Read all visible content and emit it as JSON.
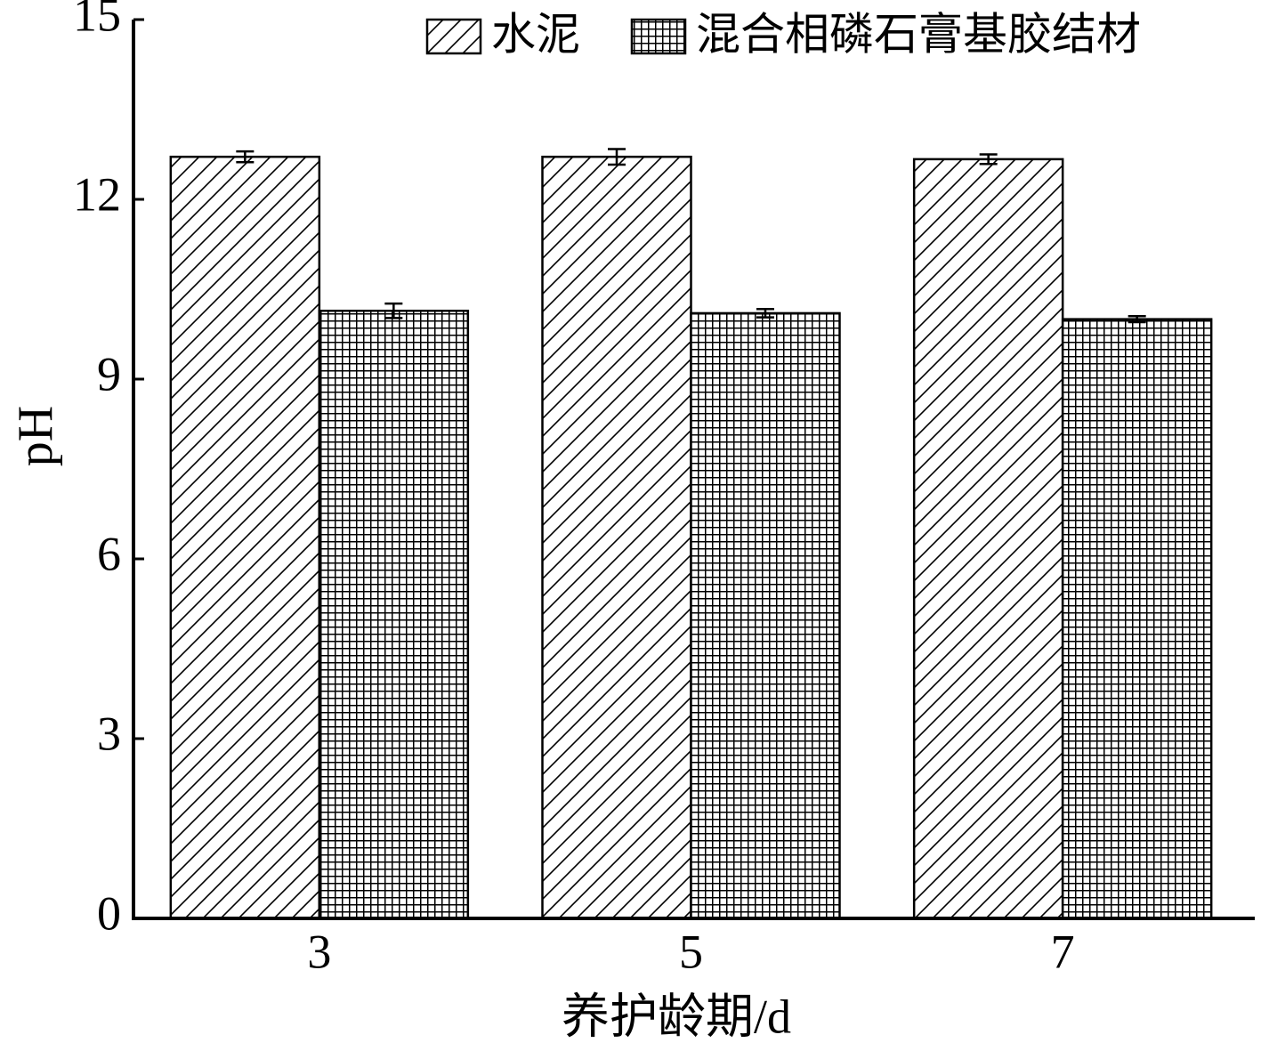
{
  "chart_data": {
    "type": "bar",
    "x_label": "养护龄期/d",
    "y_label": "pH",
    "categories": [
      "3",
      "5",
      "7"
    ],
    "series": [
      {
        "name": "水泥",
        "color": "#000000",
        "pattern": "diagonal",
        "values": [
          12.71,
          12.71,
          12.67
        ],
        "errors": [
          0.09,
          0.13,
          0.08
        ]
      },
      {
        "name": "混合相磷石膏基胶结材",
        "color": "#000000",
        "pattern": "grid",
        "values": [
          10.14,
          10.1,
          10.0
        ],
        "errors": [
          0.12,
          0.07,
          0.05
        ]
      }
    ],
    "ylim": [
      0,
      15
    ],
    "yticks": [
      0,
      3,
      6,
      9,
      12,
      15
    ],
    "grid": false,
    "legend": "top-right"
  }
}
